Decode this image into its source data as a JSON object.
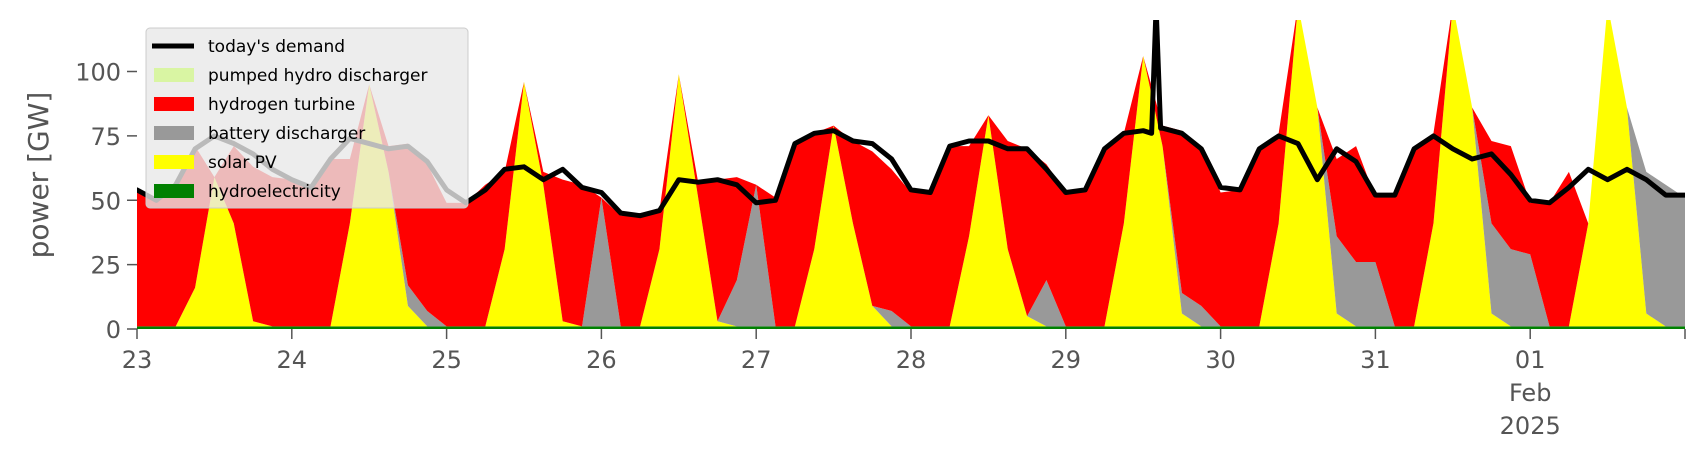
{
  "chart_data": {
    "type": "area",
    "title": "",
    "ylabel": "power [GW]",
    "xlabel": "",
    "ylim": [
      0,
      120
    ],
    "yticks": [
      0,
      25,
      50,
      75,
      100
    ],
    "grid": false,
    "legend_placement": "top-left",
    "x_tick_labels": [
      "23",
      "24",
      "25",
      "26",
      "27",
      "28",
      "29",
      "30",
      "31",
      "01",
      "Feb",
      "2025"
    ],
    "x_ticks": [
      {
        "day": 23,
        "label": "23"
      },
      {
        "day": 24,
        "label": "24"
      },
      {
        "day": 25,
        "label": "25"
      },
      {
        "day": 26,
        "label": "26"
      },
      {
        "day": 27,
        "label": "27"
      },
      {
        "day": 28,
        "label": "28"
      },
      {
        "day": 29,
        "label": "29"
      },
      {
        "day": 30,
        "label": "30"
      },
      {
        "day": 31,
        "label": "31"
      },
      {
        "day": 32,
        "label": "01",
        "sublabel": [
          "Feb",
          "2025"
        ]
      },
      {
        "day": 33,
        "label": ""
      }
    ],
    "x_range": [
      "2025-01-23",
      "2025-02-02"
    ],
    "x": [
      "2025-01-23T00:00",
      "2025-01-23T03:00",
      "2025-01-23T06:00",
      "2025-01-23T09:00",
      "2025-01-23T12:00",
      "2025-01-23T15:00",
      "2025-01-23T18:00",
      "2025-01-23T21:00",
      "2025-01-24T00:00",
      "2025-01-24T03:00",
      "2025-01-24T06:00",
      "2025-01-24T09:00",
      "2025-01-24T12:00",
      "2025-01-24T15:00",
      "2025-01-24T18:00",
      "2025-01-24T21:00",
      "2025-01-25T00:00",
      "2025-01-25T03:00",
      "2025-01-25T06:00",
      "2025-01-25T09:00",
      "2025-01-25T12:00",
      "2025-01-25T15:00",
      "2025-01-25T18:00",
      "2025-01-25T21:00",
      "2025-01-26T00:00",
      "2025-01-26T03:00",
      "2025-01-26T06:00",
      "2025-01-26T09:00",
      "2025-01-26T12:00",
      "2025-01-26T15:00",
      "2025-01-26T18:00",
      "2025-01-26T21:00",
      "2025-01-27T00:00",
      "2025-01-27T03:00",
      "2025-01-27T06:00",
      "2025-01-27T09:00",
      "2025-01-27T12:00",
      "2025-01-27T15:00",
      "2025-01-27T18:00",
      "2025-01-27T21:00",
      "2025-01-28T00:00",
      "2025-01-28T03:00",
      "2025-01-28T06:00",
      "2025-01-28T09:00",
      "2025-01-28T12:00",
      "2025-01-28T15:00",
      "2025-01-28T18:00",
      "2025-01-28T21:00",
      "2025-01-29T00:00",
      "2025-01-29T03:00",
      "2025-01-29T06:00",
      "2025-01-29T09:00",
      "2025-01-29T12:00",
      "2025-01-29T15:00",
      "2025-01-29T18:00",
      "2025-01-29T21:00",
      "2025-01-30T00:00",
      "2025-01-30T03:00",
      "2025-01-30T06:00",
      "2025-01-30T09:00",
      "2025-01-30T12:00",
      "2025-01-30T15:00",
      "2025-01-30T18:00",
      "2025-01-30T21:00",
      "2025-01-31T00:00",
      "2025-01-31T03:00",
      "2025-01-31T06:00",
      "2025-01-31T09:00",
      "2025-01-31T12:00",
      "2025-01-31T15:00",
      "2025-01-31T18:00",
      "2025-01-31T21:00",
      "2025-02-01T00:00",
      "2025-02-01T03:00",
      "2025-02-01T06:00",
      "2025-02-01T09:00",
      "2025-02-01T12:00",
      "2025-02-01T15:00",
      "2025-02-01T18:00",
      "2025-02-01T21:00",
      "2025-02-02T00:00"
    ],
    "series": [
      {
        "name": "hydroelectricity",
        "color": "#008000",
        "values": [
          1,
          1,
          1,
          1,
          1,
          1,
          1,
          1,
          1,
          1,
          1,
          1,
          1,
          1,
          1,
          1,
          1,
          1,
          1,
          1,
          1,
          1,
          1,
          1,
          1,
          1,
          1,
          1,
          1,
          1,
          1,
          1,
          1,
          1,
          1,
          1,
          1,
          1,
          1,
          1,
          1,
          1,
          1,
          1,
          1,
          1,
          1,
          1,
          1,
          1,
          1,
          1,
          1,
          1,
          1,
          1,
          1,
          1,
          1,
          1,
          1,
          1,
          1,
          1,
          1,
          1,
          1,
          1,
          1,
          1,
          1,
          1,
          1,
          1,
          1,
          1,
          1,
          1,
          1,
          1,
          1
        ]
      },
      {
        "name": "solar PV",
        "color": "#ffff00",
        "values": [
          0,
          0,
          0,
          15,
          58,
          40,
          2,
          0,
          0,
          0,
          0,
          40,
          94,
          60,
          8,
          0,
          0,
          0,
          0,
          30,
          95,
          55,
          2,
          0,
          0,
          0,
          0,
          30,
          98,
          50,
          2,
          0,
          0,
          0,
          0,
          30,
          78,
          40,
          8,
          0,
          0,
          0,
          0,
          35,
          82,
          30,
          4,
          0,
          0,
          0,
          0,
          40,
          105,
          70,
          5,
          0,
          0,
          0,
          0,
          40,
          125,
          85,
          5,
          0,
          0,
          0,
          0,
          40,
          125,
          85,
          5,
          0,
          0,
          0,
          0,
          40,
          125,
          85,
          5,
          0,
          0
        ]
      },
      {
        "name": "battery discharger",
        "color": "#999999",
        "values": [
          0,
          0,
          0,
          0,
          0,
          0,
          0,
          0,
          0,
          0,
          0,
          0,
          0,
          0,
          8,
          6,
          0,
          0,
          0,
          0,
          0,
          0,
          0,
          0,
          50,
          0,
          0,
          0,
          0,
          0,
          0,
          18,
          55,
          0,
          0,
          0,
          0,
          0,
          0,
          6,
          0,
          0,
          0,
          0,
          0,
          0,
          0,
          18,
          0,
          0,
          0,
          0,
          0,
          0,
          8,
          8,
          0,
          0,
          0,
          0,
          0,
          0,
          30,
          25,
          25,
          0,
          0,
          0,
          0,
          0,
          35,
          30,
          28,
          0,
          0,
          0,
          0,
          0,
          55,
          55,
          50
        ]
      },
      {
        "name": "hydrogen turbine",
        "color": "#ff0000",
        "values": [
          53,
          50,
          55,
          55,
          0,
          30,
          60,
          58,
          57,
          55,
          65,
          25,
          0,
          10,
          55,
          57,
          48,
          48,
          55,
          30,
          0,
          5,
          55,
          55,
          0,
          43,
          44,
          15,
          0,
          6,
          55,
          40,
          0,
          50,
          70,
          45,
          0,
          32,
          60,
          55,
          52,
          52,
          70,
          35,
          0,
          42,
          65,
          45,
          52,
          53,
          70,
          35,
          0,
          8,
          63,
          62,
          52,
          53,
          70,
          35,
          0,
          0,
          30,
          45,
          25,
          51,
          70,
          35,
          0,
          0,
          32,
          40,
          20,
          48,
          60,
          0,
          0,
          0,
          0,
          0,
          0
        ]
      },
      {
        "name": "pumped hydro discharger",
        "color": "#d9f5a3",
        "values": [
          0,
          0,
          0,
          0,
          0,
          0,
          0,
          0,
          0,
          0,
          0,
          0,
          0,
          0,
          0,
          0,
          0,
          0,
          0,
          0,
          0,
          0,
          0,
          0,
          0,
          0,
          0,
          0,
          0,
          0,
          0,
          0,
          0,
          0,
          0,
          0,
          0,
          0,
          0,
          0,
          0,
          0,
          0,
          0,
          0,
          0,
          0,
          0,
          0,
          0,
          0,
          0,
          0,
          0,
          0,
          0,
          0,
          0,
          0,
          0,
          0,
          0,
          0,
          0,
          0,
          0,
          0,
          0,
          0,
          0,
          0,
          0,
          0,
          0,
          0,
          0,
          0,
          0,
          0,
          0,
          0
        ]
      },
      {
        "name": "today's demand",
        "color": "#000000",
        "type": "line",
        "values": [
          54,
          50,
          56,
          70,
          75,
          72,
          68,
          62,
          58,
          55,
          66,
          74,
          72,
          70,
          71,
          65,
          54,
          49,
          54,
          62,
          63,
          58,
          62,
          55,
          53,
          45,
          44,
          46,
          58,
          57,
          58,
          56,
          49,
          50,
          72,
          76,
          77,
          73,
          72,
          66,
          54,
          53,
          71,
          73,
          73,
          70,
          70,
          62,
          53,
          54,
          70,
          76,
          77,
          78,
          76,
          70,
          55,
          54,
          70,
          75,
          72,
          58,
          70,
          65,
          52,
          52,
          70,
          75,
          70,
          66,
          68,
          60,
          50,
          49,
          55,
          62,
          58,
          62,
          58,
          52,
          52
        ]
      }
    ],
    "spike": {
      "x": "2025-01-29T14:00",
      "value": 125
    }
  },
  "legend": {
    "items": [
      {
        "label": "today's demand",
        "color": "#000000",
        "kind": "line"
      },
      {
        "label": "pumped hydro discharger",
        "color": "#d9f5a3",
        "kind": "patch"
      },
      {
        "label": "hydrogen turbine",
        "color": "#ff0000",
        "kind": "patch"
      },
      {
        "label": "battery discharger",
        "color": "#999999",
        "kind": "patch"
      },
      {
        "label": "solar PV",
        "color": "#ffff00",
        "kind": "patch"
      },
      {
        "label": "hydroelectricity",
        "color": "#008000",
        "kind": "patch"
      }
    ]
  },
  "colors": {
    "legend_background": "#e8e8e8",
    "legend_border": "#cccccc",
    "tick_text": "#555555"
  }
}
